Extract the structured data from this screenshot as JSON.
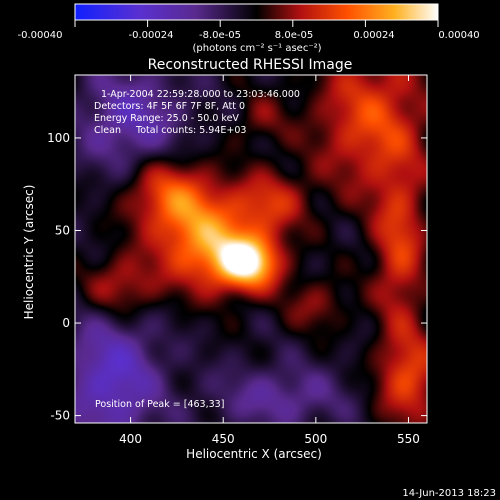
{
  "colorbar": {
    "tick_labels": [
      "-0.00040",
      "-0.00024",
      "-8.0e-05",
      "8.0e-05",
      "0.00024",
      "0.00040"
    ],
    "unit_label": "(photons cm⁻² s⁻¹ asec⁻²)",
    "range": [
      -0.0004,
      0.0004
    ],
    "colors": [
      "#1020ff",
      "#5a30d0",
      "#5a2a90",
      "#000000",
      "#b01010",
      "#ff5000",
      "#ffb020",
      "#ffffff"
    ]
  },
  "chart_data": {
    "type": "heatmap",
    "title": "Reconstructed RHESSI Image",
    "xlabel": "Heliocentric X (arcsec)",
    "ylabel": "Heliocentric Y (arcsec)",
    "xlim": [
      370,
      560
    ],
    "ylim": [
      -54,
      134
    ],
    "x_ticks": [
      400,
      450,
      500,
      550
    ],
    "y_ticks": [
      -50,
      0,
      50,
      100
    ],
    "annotations": [
      "1-Apr-2004 22:59:28.000 to 23:03:46.000",
      "Detectors: 4F 5F 6F 7F 8F, Att 0",
      "Energy Range: 25.0 - 50.0 keV",
      "Clean     Total counts: 5.94E+03"
    ],
    "peak_label": "Position of Peak = [463,33]",
    "peak": [
      463,
      33
    ],
    "sources": [
      {
        "x": 463,
        "y": 33,
        "value": 0.0004,
        "sx": 12,
        "sy": 10
      },
      {
        "x": 440,
        "y": 45,
        "value": 0.00028,
        "sx": 18,
        "sy": 18
      },
      {
        "x": 420,
        "y": 70,
        "value": 0.0002,
        "sx": 16,
        "sy": 14
      },
      {
        "x": 475,
        "y": 65,
        "value": 0.00016,
        "sx": 14,
        "sy": 12
      },
      {
        "x": 395,
        "y": 20,
        "value": 0.00015,
        "sx": 14,
        "sy": 12
      },
      {
        "x": 530,
        "y": 110,
        "value": 0.0002,
        "sx": 22,
        "sy": 28
      },
      {
        "x": 545,
        "y": 40,
        "value": 0.00018,
        "sx": 10,
        "sy": 30
      },
      {
        "x": 550,
        "y": -30,
        "value": 0.0002,
        "sx": 12,
        "sy": 18
      },
      {
        "x": 500,
        "y": 10,
        "value": 0.0001,
        "sx": 12,
        "sy": 10
      },
      {
        "x": 470,
        "y": 110,
        "value": 8e-05,
        "sx": 10,
        "sy": 10
      },
      {
        "x": 400,
        "y": 110,
        "value": -0.00016,
        "sx": 20,
        "sy": 20
      },
      {
        "x": 390,
        "y": -30,
        "value": -0.0002,
        "sx": 18,
        "sy": 25
      },
      {
        "x": 480,
        "y": -40,
        "value": -0.00012,
        "sx": 25,
        "sy": 12
      }
    ]
  },
  "timestamp": "14-Jun-2013 18:23"
}
